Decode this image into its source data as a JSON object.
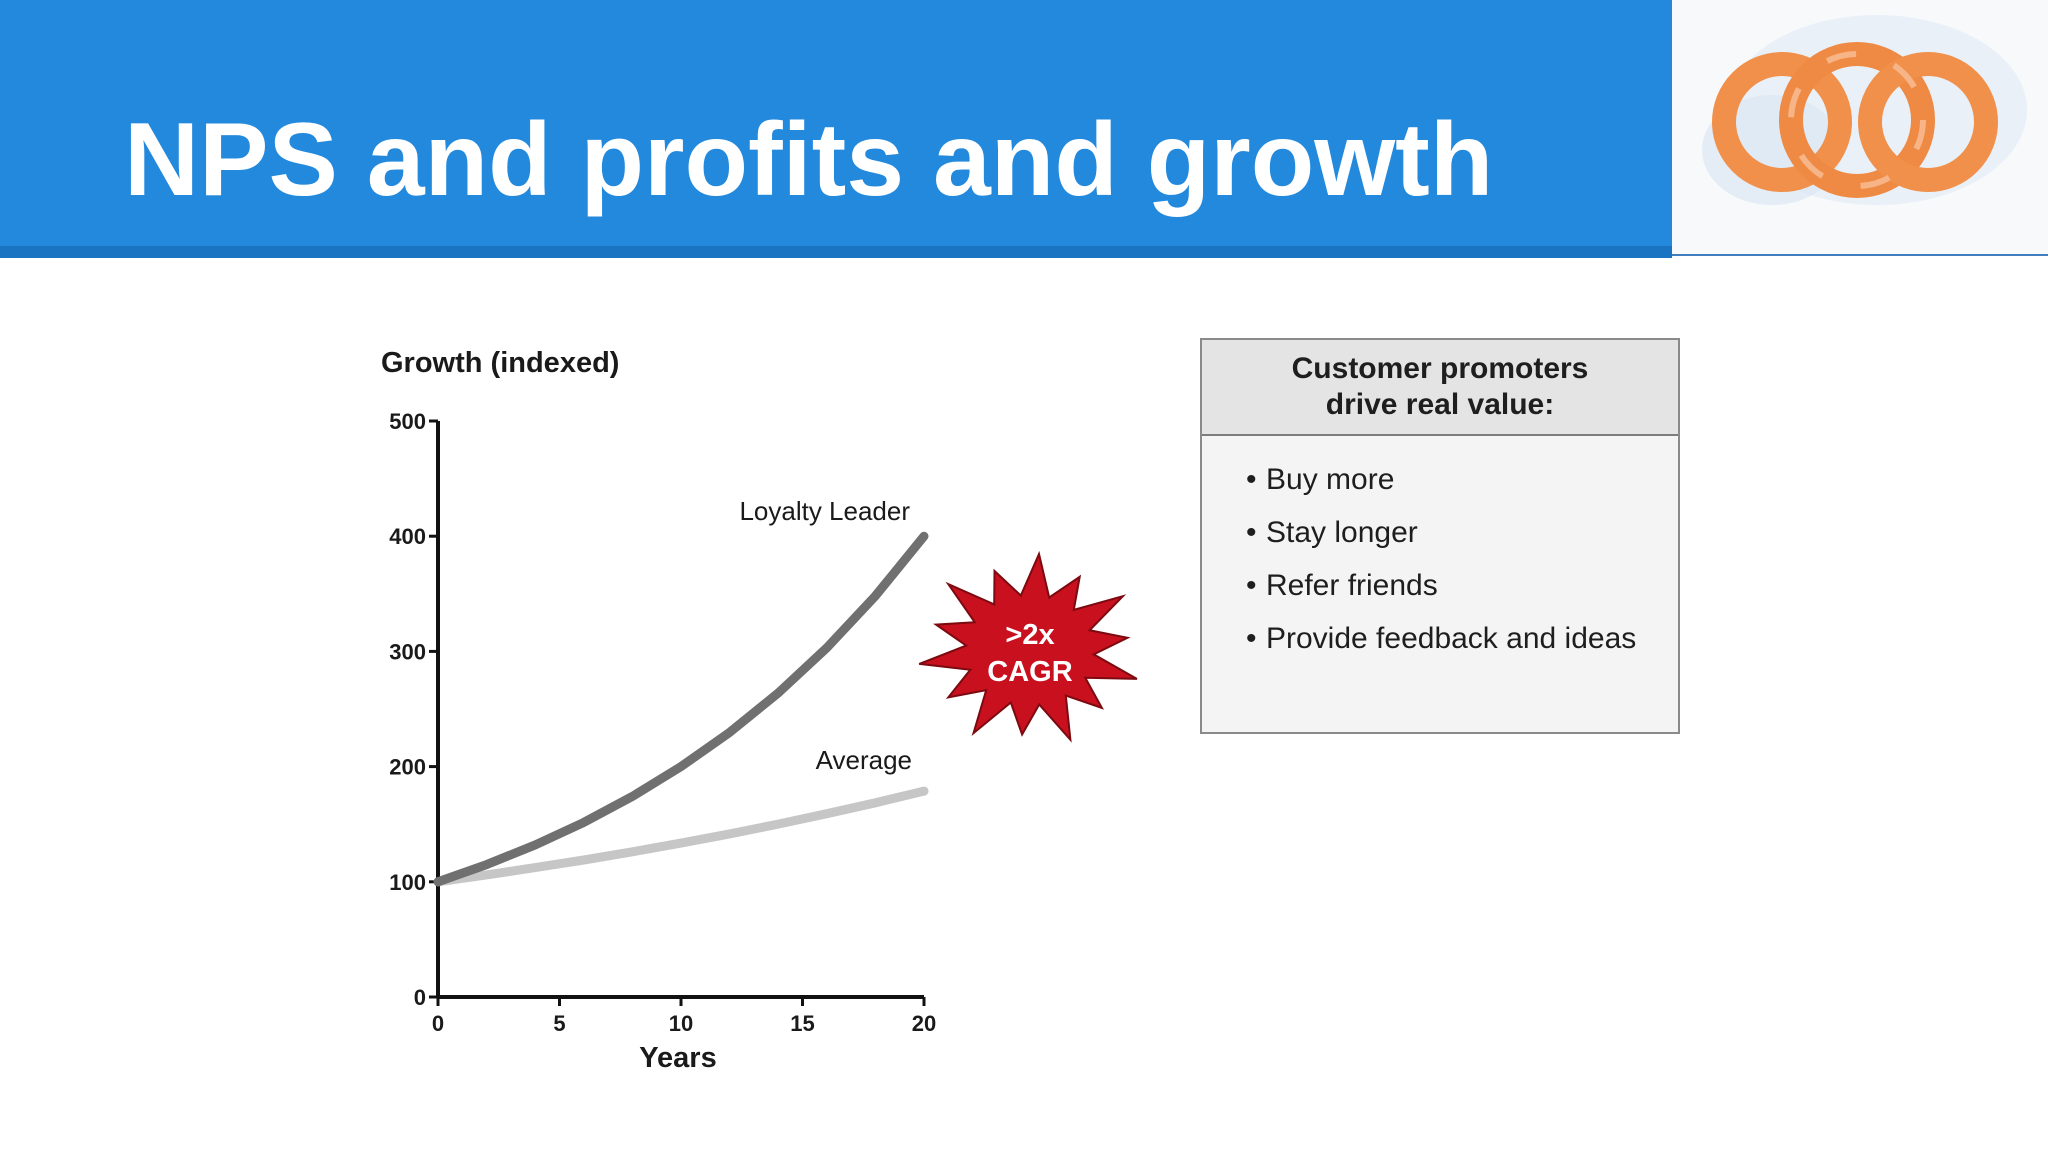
{
  "slide": {
    "title": "NPS and profits and growth"
  },
  "colors": {
    "header_blue": "#2389dd",
    "leader_line": "#707070",
    "average_line": "#c6c6c6",
    "starburst_red": "#c8101e",
    "logo_orange": "#f0904a"
  },
  "logo": {
    "icon": "interlocking-rings-logo"
  },
  "chart_data": {
    "type": "line",
    "ylabel": "Growth (indexed)",
    "xlabel": "Years",
    "xlim": [
      0,
      20
    ],
    "ylim": [
      0,
      500
    ],
    "x_ticks": [
      0,
      5,
      10,
      15,
      20
    ],
    "y_ticks": [
      0,
      100,
      200,
      300,
      400,
      500
    ],
    "grid": false,
    "series": [
      {
        "name": "Loyalty Leader",
        "x": [
          0,
          2,
          4,
          6,
          8,
          10,
          12,
          14,
          16,
          18,
          20
        ],
        "y": [
          100,
          114.9,
          132.0,
          151.6,
          174.1,
          200,
          229.7,
          263.9,
          303.1,
          348.2,
          400
        ]
      },
      {
        "name": "Average",
        "x": [
          0,
          2,
          4,
          6,
          8,
          10,
          12,
          14,
          16,
          18,
          20
        ],
        "y": [
          100,
          106.0,
          112.3,
          118.9,
          126.0,
          133.6,
          141.6,
          150.1,
          159.1,
          168.6,
          178.7
        ]
      }
    ],
    "annotations": [
      {
        "lines": [
          ">2x",
          "CAGR"
        ]
      }
    ]
  },
  "callout": {
    "header_lines": [
      "Customer promoters",
      "drive real value:"
    ],
    "bullet": "•",
    "items": [
      "Buy more",
      "Stay longer",
      "Refer friends",
      "Provide feedback and ideas"
    ]
  }
}
